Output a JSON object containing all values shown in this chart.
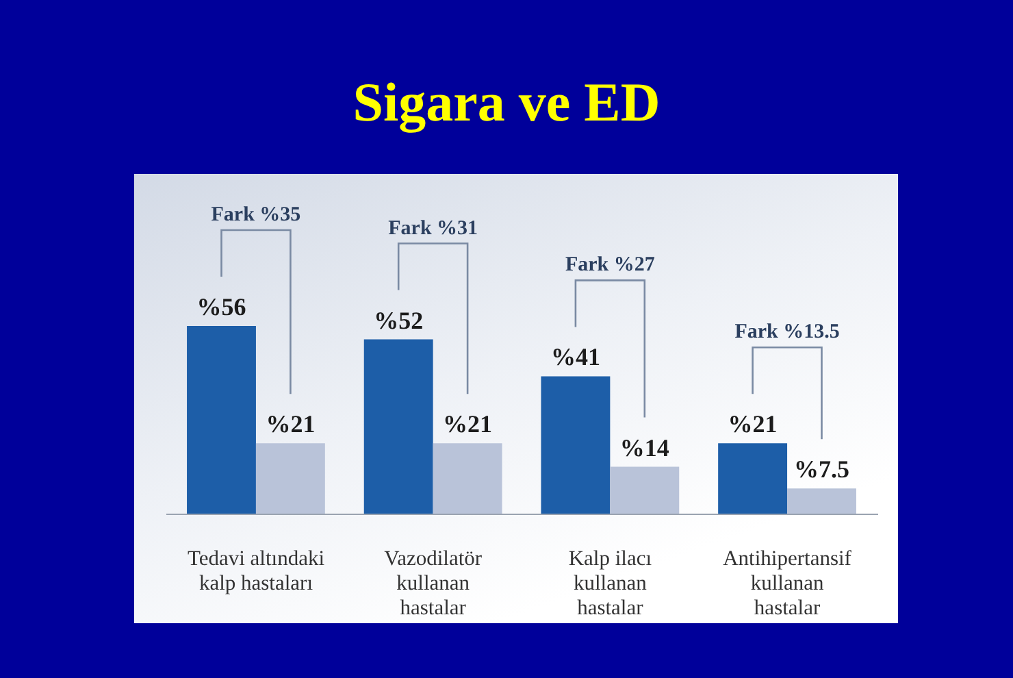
{
  "chart_data": {
    "type": "bar",
    "title": "Sigara ve ED",
    "categories": [
      "Tedavi altındaki kalp hastaları",
      "Vazodilatör kullanan hastalar",
      "Kalp ilacı kullanan hastalar",
      "Antihipertansif kullanan hastalar"
    ],
    "series": [
      {
        "color": "#1d5ea8",
        "values": [
          56,
          52,
          41,
          21
        ],
        "value_labels": [
          "%56",
          "%52",
          "%41",
          "%21"
        ]
      },
      {
        "color": "#b9c3d9",
        "values": [
          21,
          21,
          14,
          7.5
        ],
        "value_labels": [
          "%21",
          "%21",
          "%14",
          "%7.5"
        ]
      }
    ],
    "annotations": [
      "Fark %35",
      "Fark %31",
      "Fark %27",
      "Fark %13.5"
    ]
  }
}
